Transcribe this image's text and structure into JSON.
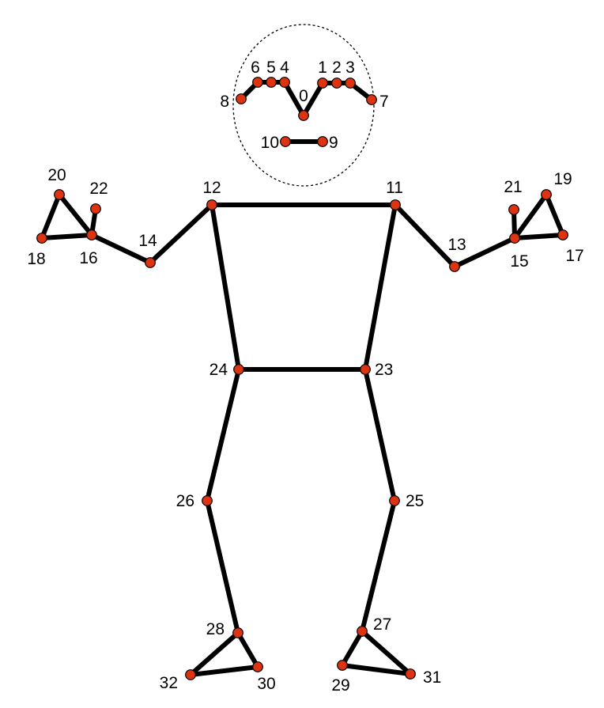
{
  "diagram": {
    "colors": {
      "background": "#ffffff",
      "bone": "#000000",
      "joint_fill": "#dd3311",
      "joint_stroke": "#000000",
      "head_outline": "#000000"
    },
    "keypoints": [
      {
        "id": "0",
        "label": "0"
      },
      {
        "id": "1",
        "label": "1"
      },
      {
        "id": "2",
        "label": "2"
      },
      {
        "id": "3",
        "label": "3"
      },
      {
        "id": "4",
        "label": "4"
      },
      {
        "id": "5",
        "label": "5"
      },
      {
        "id": "6",
        "label": "6"
      },
      {
        "id": "7",
        "label": "7"
      },
      {
        "id": "8",
        "label": "8"
      },
      {
        "id": "9",
        "label": "9"
      },
      {
        "id": "10",
        "label": "10"
      },
      {
        "id": "11",
        "label": "11"
      },
      {
        "id": "12",
        "label": "12"
      },
      {
        "id": "13",
        "label": "13"
      },
      {
        "id": "14",
        "label": "14"
      },
      {
        "id": "15",
        "label": "15"
      },
      {
        "id": "16",
        "label": "16"
      },
      {
        "id": "17",
        "label": "17"
      },
      {
        "id": "18",
        "label": "18"
      },
      {
        "id": "19",
        "label": "19"
      },
      {
        "id": "20",
        "label": "20"
      },
      {
        "id": "21",
        "label": "21"
      },
      {
        "id": "22",
        "label": "22"
      },
      {
        "id": "23",
        "label": "23"
      },
      {
        "id": "24",
        "label": "24"
      },
      {
        "id": "25",
        "label": "25"
      },
      {
        "id": "26",
        "label": "26"
      },
      {
        "id": "27",
        "label": "27"
      },
      {
        "id": "28",
        "label": "28"
      },
      {
        "id": "29",
        "label": "29"
      },
      {
        "id": "30",
        "label": "30"
      },
      {
        "id": "31",
        "label": "31"
      },
      {
        "id": "32",
        "label": "32"
      }
    ],
    "connections": [
      [
        "0",
        "4"
      ],
      [
        "4",
        "5"
      ],
      [
        "5",
        "6"
      ],
      [
        "6",
        "8"
      ],
      [
        "0",
        "1"
      ],
      [
        "1",
        "2"
      ],
      [
        "2",
        "3"
      ],
      [
        "3",
        "7"
      ],
      [
        "9",
        "10"
      ],
      [
        "11",
        "12"
      ],
      [
        "11",
        "23"
      ],
      [
        "12",
        "24"
      ],
      [
        "23",
        "24"
      ],
      [
        "11",
        "13"
      ],
      [
        "13",
        "15"
      ],
      [
        "15",
        "17"
      ],
      [
        "15",
        "19"
      ],
      [
        "15",
        "21"
      ],
      [
        "17",
        "19"
      ],
      [
        "12",
        "14"
      ],
      [
        "14",
        "16"
      ],
      [
        "16",
        "18"
      ],
      [
        "16",
        "20"
      ],
      [
        "16",
        "22"
      ],
      [
        "18",
        "20"
      ],
      [
        "23",
        "25"
      ],
      [
        "25",
        "27"
      ],
      [
        "27",
        "29"
      ],
      [
        "27",
        "31"
      ],
      [
        "29",
        "31"
      ],
      [
        "24",
        "26"
      ],
      [
        "26",
        "28"
      ],
      [
        "28",
        "30"
      ],
      [
        "28",
        "32"
      ],
      [
        "30",
        "32"
      ]
    ]
  }
}
